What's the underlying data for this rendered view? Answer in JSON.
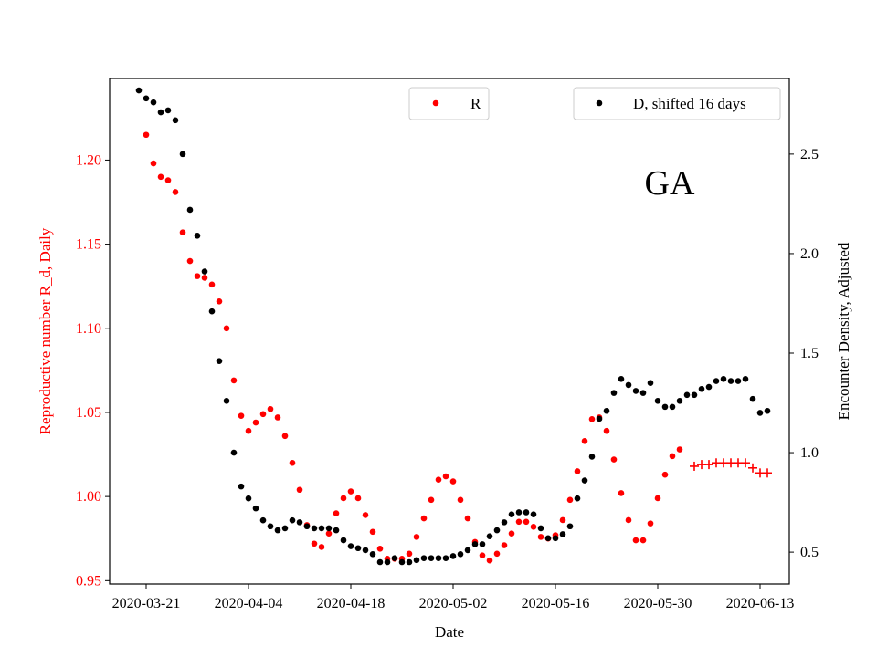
{
  "chart_data": {
    "type": "scatter",
    "xlabel": "Date",
    "ylabel_left": "Reproductive number R_d, Daily",
    "ylabel_right": "Encounter Density, Adjusted",
    "annotation": "GA",
    "x_ticks": [
      "2020-03-21",
      "2020-04-04",
      "2020-04-18",
      "2020-05-02",
      "2020-05-16",
      "2020-05-30",
      "2020-06-13"
    ],
    "left_ticks": [
      "0.95",
      "1.00",
      "1.05",
      "1.10",
      "1.15",
      "1.20"
    ],
    "right_ticks": [
      "0.5",
      "1.0",
      "1.5",
      "2.0",
      "2.5"
    ],
    "xlim": [
      "2020-03-16",
      "2020-06-17"
    ],
    "ylim_left": [
      0.948,
      1.2485
    ],
    "ylim_right": [
      0.34,
      2.88
    ],
    "colors": {
      "R": "#ff0000",
      "D": "#000000",
      "left_axis": "#ff0000"
    },
    "legend": {
      "R_label": "R",
      "D_label": "D, shifted 16 days",
      "placement": "top"
    },
    "series": [
      {
        "name": "R",
        "axis": "left",
        "marker": "dot",
        "start_date": "2020-03-21",
        "values": [
          1.215,
          1.198,
          1.19,
          1.188,
          1.181,
          1.157,
          1.14,
          1.131,
          1.13,
          1.126,
          1.116,
          1.1,
          1.069,
          1.048,
          1.039,
          1.044,
          1.049,
          1.052,
          1.047,
          1.036,
          1.02,
          1.004,
          0.983,
          0.972,
          0.97,
          0.978,
          0.99,
          0.999,
          1.003,
          0.999,
          0.989,
          0.979,
          0.969,
          0.963,
          0.963,
          0.963,
          0.966,
          0.976,
          0.987,
          0.998,
          1.01,
          1.012,
          1.009,
          0.998,
          0.987,
          0.973,
          0.965,
          0.962,
          0.966,
          0.971,
          0.978,
          0.985,
          0.985,
          0.982,
          0.976,
          0.975,
          0.977,
          0.986,
          0.998,
          1.015,
          1.033,
          1.046,
          1.047,
          1.039,
          1.022,
          1.002,
          0.986,
          0.974,
          0.974,
          0.984,
          0.999,
          1.013,
          1.024,
          1.028
        ]
      },
      {
        "name": "R",
        "axis": "left",
        "marker": "plus",
        "start_date": "2020-06-04",
        "values": [
          1.018,
          1.019,
          1.019,
          1.02,
          1.02,
          1.02,
          1.02,
          1.02,
          1.017,
          1.014,
          1.014
        ]
      },
      {
        "name": "D, shifted 16 days",
        "axis": "right",
        "marker": "dot",
        "start_date": "2020-03-20",
        "values": [
          2.82,
          2.78,
          2.76,
          2.71,
          2.72,
          2.67,
          2.5,
          2.22,
          2.09,
          1.91,
          1.71,
          1.46,
          1.26,
          1.0,
          0.83,
          0.77,
          0.72,
          0.66,
          0.63,
          0.61,
          0.62,
          0.66,
          0.65,
          0.63,
          0.62,
          0.62,
          0.62,
          0.61,
          0.56,
          0.53,
          0.52,
          0.51,
          0.49,
          0.45,
          0.45,
          0.47,
          0.45,
          0.45,
          0.46,
          0.47,
          0.47,
          0.47,
          0.47,
          0.48,
          0.49,
          0.51,
          0.54,
          0.54,
          0.58,
          0.61,
          0.65,
          0.69,
          0.7,
          0.7,
          0.69,
          0.62,
          0.57,
          0.57,
          0.59,
          0.63,
          0.77,
          0.86,
          0.98,
          1.17,
          1.21,
          1.3,
          1.37,
          1.34,
          1.31,
          1.3,
          1.35,
          1.26,
          1.23,
          1.23,
          1.26,
          1.29,
          1.29,
          1.32,
          1.33,
          1.36,
          1.37,
          1.36,
          1.36,
          1.37,
          1.27,
          1.2,
          1.21
        ]
      }
    ]
  }
}
